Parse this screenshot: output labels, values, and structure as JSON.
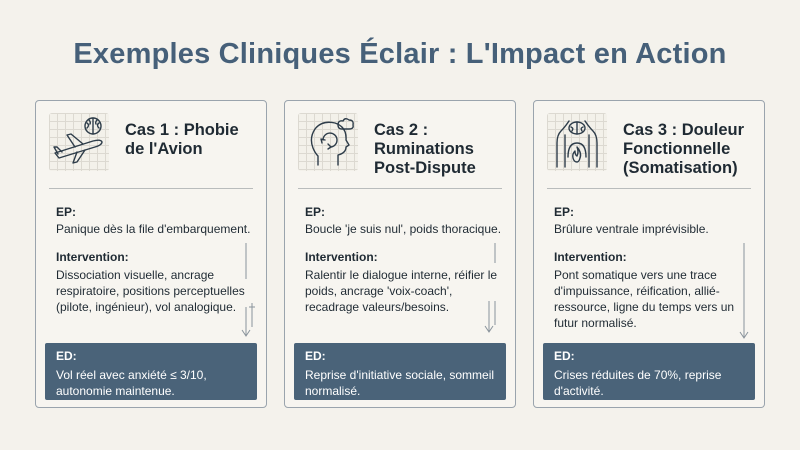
{
  "title": "Exemples Cliniques Éclair : L'Impact en Action",
  "cards": [
    {
      "title": "Cas 1 : Phobie\nde l'Avion",
      "icon": "airplane-brain-icon",
      "ep_label": "EP:",
      "ep_text": "Panique dès la file d'embarquement.",
      "intervention_label": "Intervention:",
      "intervention_text": "Dissociation visuelle, ancrage respiratoire, positions perceptuelles (pilote, ingénieur), vol analogique.",
      "ed_label": "ED:",
      "ed_text": "Vol réel avec anxiété ≤ 3/10, autonomie maintenue."
    },
    {
      "title": "Cas 2 :\nRuminations\nPost-Dispute",
      "icon": "head-loop-icon",
      "ep_label": "EP:",
      "ep_text": "Boucle 'je suis nul', poids thoracique.",
      "intervention_label": "Intervention:",
      "intervention_text": "Ralentir le dialogue interne, réifier le poids, ancrage 'voix-coach', recadrage valeurs/besoins.",
      "ed_label": "ED:",
      "ed_text": "Reprise d'initiative sociale, sommeil normalisé."
    },
    {
      "title": "Cas 3 : Douleur\nFonctionnelle\n(Somatisation)",
      "icon": "torso-brain-flame-icon",
      "ep_label": "EP:",
      "ep_text": "Brûlure ventrale imprévisible.",
      "intervention_label": "Intervention:",
      "intervention_text": "Pont somatique vers une trace d'impuissance, réification, allié-ressource, ligne du temps vers un futur normalisé.",
      "ed_label": "ED:",
      "ed_text": "Crises réduites de 70%, reprise d'activité."
    }
  ]
}
